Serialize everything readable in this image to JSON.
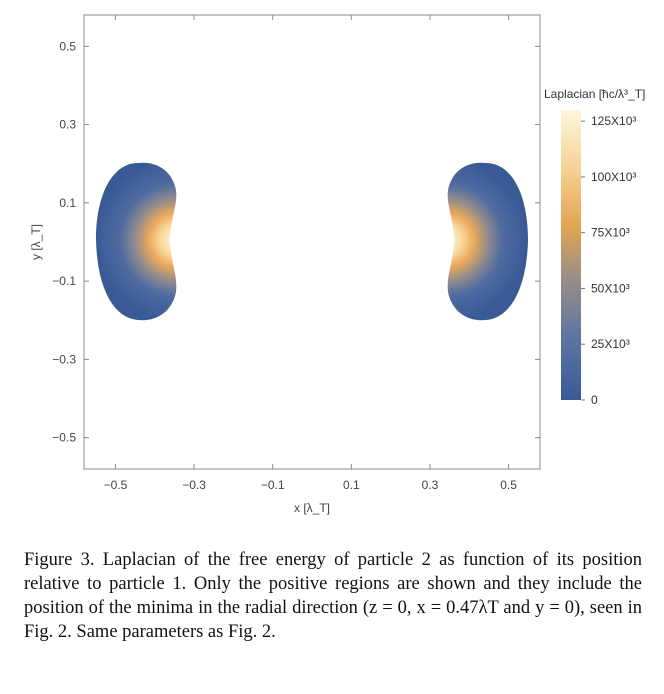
{
  "chart_data": {
    "type": "heatmap",
    "title": "",
    "xlabel": "x [λ_T]",
    "ylabel": "y [λ_T]",
    "xlim": [
      -0.58,
      0.58
    ],
    "ylim": [
      -0.58,
      0.58
    ],
    "xticks": [
      -0.5,
      -0.3,
      -0.1,
      0.1,
      0.3,
      0.5
    ],
    "yticks": [
      0.5,
      0.3,
      0.1,
      -0.1,
      -0.3,
      -0.5
    ],
    "xtick_labels": [
      "−0.5",
      "−0.3",
      "−0.1",
      "0.1",
      "0.3",
      "0.5"
    ],
    "ytick_labels": [
      "0.5",
      "0.3",
      "0.1",
      "−0.1",
      "−0.3",
      "−0.5"
    ],
    "regions": [
      {
        "center_x": -0.43,
        "center_y": 0.0,
        "extent_x": [
          -0.55,
          -0.34
        ],
        "extent_y": [
          -0.2,
          0.2
        ],
        "peak_x": -0.36
      },
      {
        "center_x": 0.43,
        "center_y": 0.0,
        "extent_x": [
          0.34,
          0.55
        ],
        "extent_y": [
          -0.2,
          0.2
        ],
        "peak_x": 0.36
      }
    ],
    "colorbar": {
      "title": "Laplacian [ħc/λ³_T]",
      "range": [
        0,
        130000
      ],
      "ticks": [
        0,
        25000,
        50000,
        75000,
        100000,
        125000
      ],
      "tick_labels": [
        "0",
        "25X10³",
        "50X10³",
        "75X10³",
        "100X10³",
        "125X10³"
      ],
      "colors": [
        "#3a5a96",
        "#6f84a6",
        "#9a8e86",
        "#e3a452",
        "#f6d294",
        "#fff6de"
      ]
    },
    "grid": false
  },
  "caption": "Figure 3. Laplacian of the free energy of particle 2 as function of its position relative to particle 1. Only the positive regions are shown and they include the position of the minima in the radial direction (z = 0, x = 0.47λT and y = 0), seen in Fig. 2. Same parameters as Fig. 2."
}
